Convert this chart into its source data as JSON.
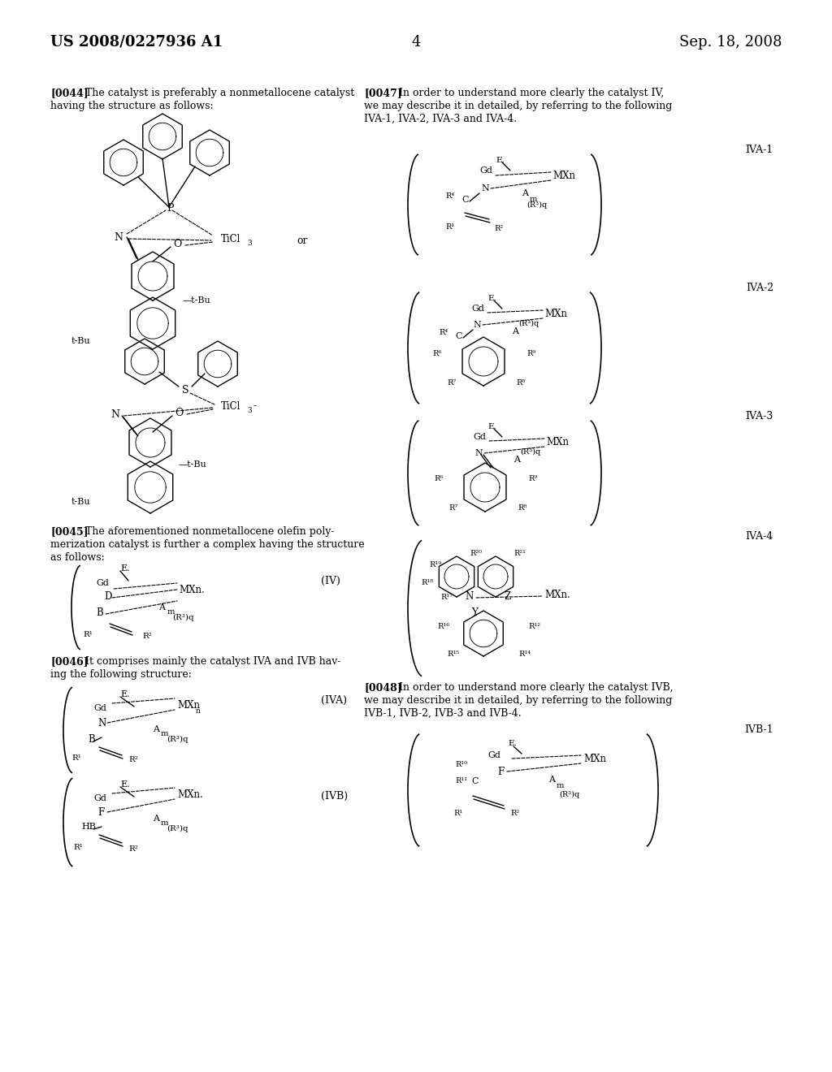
{
  "page_number": "4",
  "header_left": "US 2008/0227936 A1",
  "header_right": "Sep. 18, 2008",
  "background_color": "#ffffff",
  "text_color": "#000000",
  "font_size_header": 13,
  "font_size_body": 9.0,
  "font_size_small": 7.5
}
